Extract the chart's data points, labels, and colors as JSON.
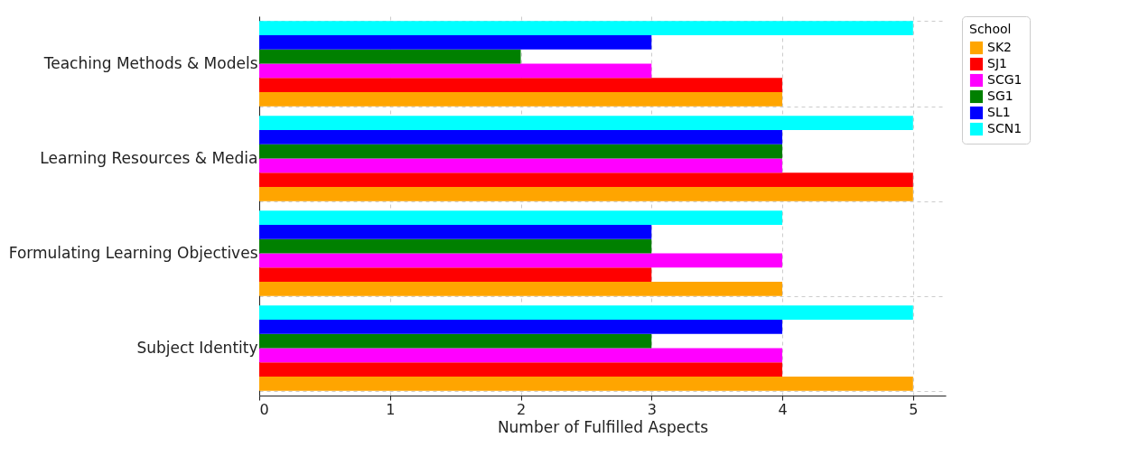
{
  "chart_data": {
    "type": "bar",
    "orientation": "horizontal",
    "xlabel": "Number of Fulfilled Aspects",
    "legend_title": "School",
    "legend": "top right",
    "grid": true,
    "categories": [
      "Teaching Methods & Models",
      "Learning Resources & Media",
      "Formulating Learning Objectives",
      "Subject Identity"
    ],
    "xlim": [
      0,
      5.25
    ],
    "xticks": [
      0,
      1,
      2,
      3,
      4,
      5
    ],
    "series": [
      {
        "name": "SK2",
        "color": "#ffa500",
        "values": [
          4,
          5,
          4,
          5
        ]
      },
      {
        "name": "SJ1",
        "color": "#ff0000",
        "values": [
          4,
          5,
          3,
          4
        ]
      },
      {
        "name": "SCG1",
        "color": "#ff00ff",
        "values": [
          3,
          4,
          4,
          4
        ]
      },
      {
        "name": "SG1",
        "color": "#008000",
        "values": [
          2,
          4,
          3,
          3
        ]
      },
      {
        "name": "SL1",
        "color": "#0000ff",
        "values": [
          3,
          4,
          3,
          4
        ]
      },
      {
        "name": "SCN1",
        "color": "#00ffff",
        "values": [
          5,
          5,
          4,
          5
        ]
      }
    ]
  }
}
